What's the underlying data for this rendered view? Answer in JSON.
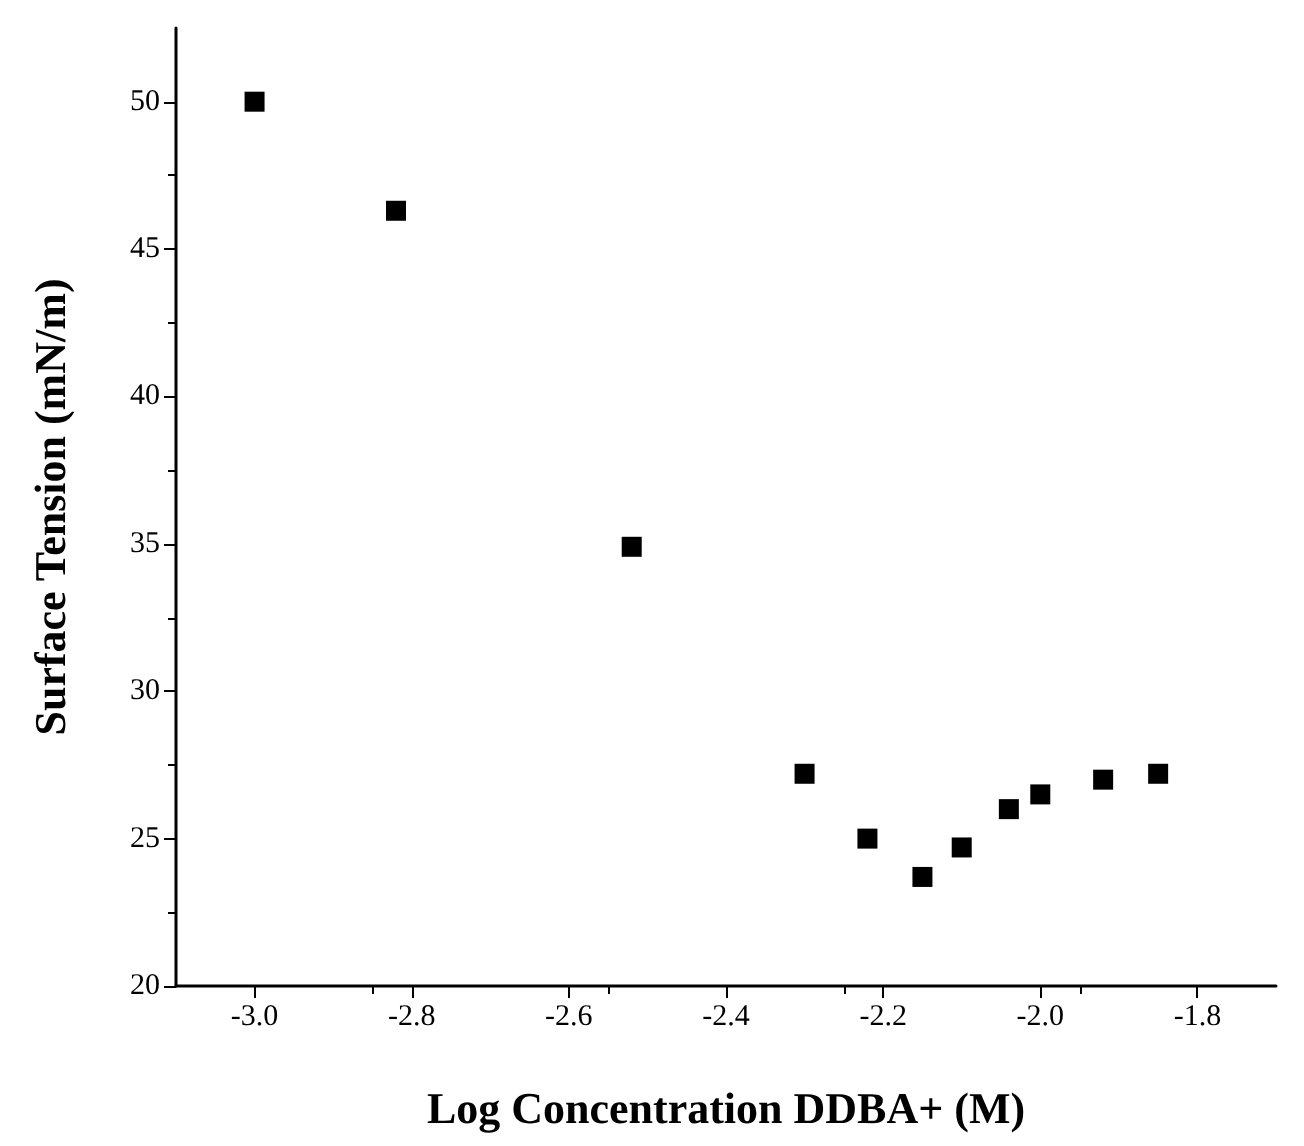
{
  "chart_data": {
    "type": "scatter",
    "xlabel": "Log Concentration DDBA+ (M)",
    "ylabel": "Surface Tension (mN/m)",
    "x": [
      -3.0,
      -2.82,
      -2.52,
      -2.3,
      -2.22,
      -2.15,
      -2.1,
      -2.04,
      -2.0,
      -1.92,
      -1.85
    ],
    "series": [
      {
        "color": "#000000",
        "values": [
          50.0,
          46.3,
          34.9,
          27.2,
          25.0,
          23.7,
          24.7,
          26.0,
          26.5,
          27.0,
          27.2
        ]
      }
    ],
    "xlim": [
      -3.1,
      -1.7
    ],
    "xticks": [
      {
        "value": -3.0,
        "label": "-3.0"
      },
      {
        "value": -2.8,
        "label": "-2.8"
      },
      {
        "value": -2.6,
        "label": "-2.6"
      },
      {
        "value": -2.4,
        "label": "-2.4"
      },
      {
        "value": -2.2,
        "label": "-2.2"
      },
      {
        "value": -2.0,
        "label": "-2.0"
      },
      {
        "value": -1.8,
        "label": "-1.8"
      }
    ],
    "ylim": [
      20,
      52.5
    ],
    "yticks": [
      20,
      25,
      30,
      35,
      40,
      45,
      50
    ],
    "marker": "square",
    "grid": false
  }
}
